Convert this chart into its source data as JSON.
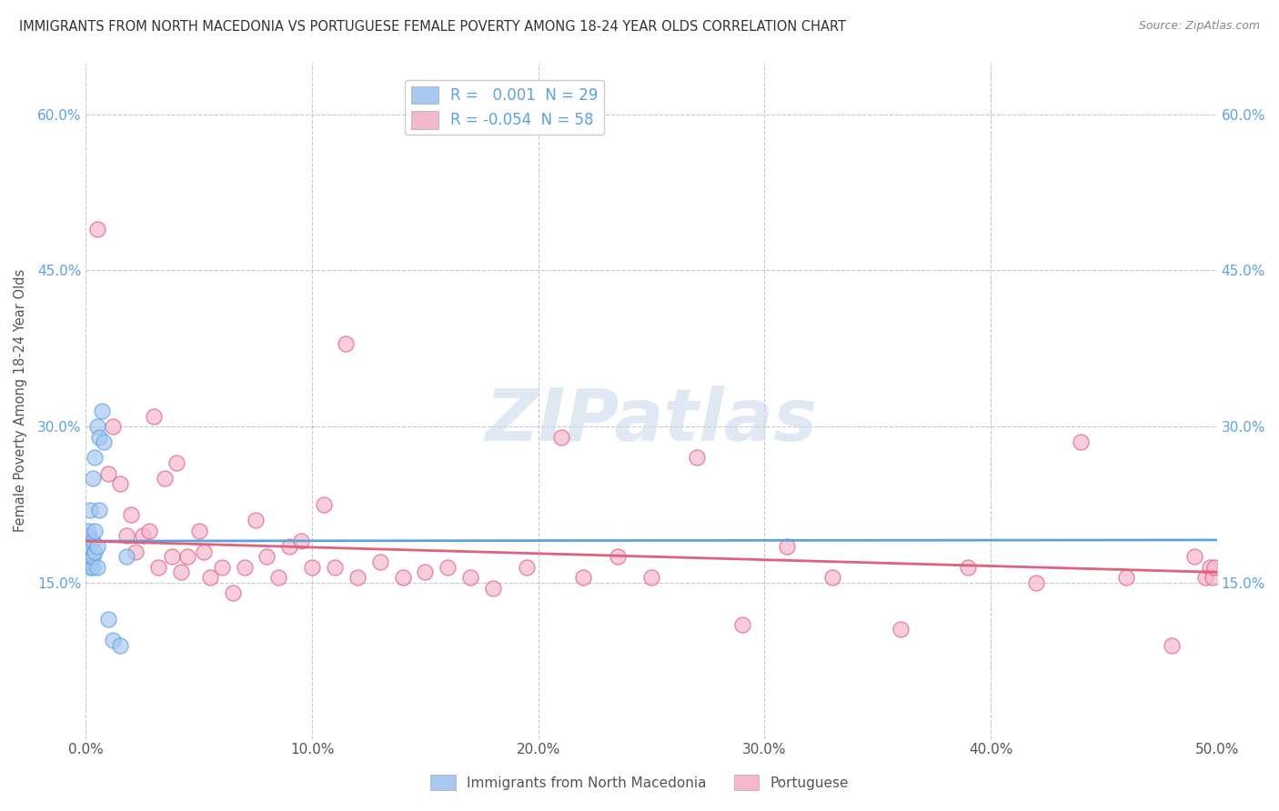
{
  "title": "IMMIGRANTS FROM NORTH MACEDONIA VS PORTUGUESE FEMALE POVERTY AMONG 18-24 YEAR OLDS CORRELATION CHART",
  "source": "Source: ZipAtlas.com",
  "ylabel": "Female Poverty Among 18-24 Year Olds",
  "xlim": [
    0.0,
    0.5
  ],
  "ylim": [
    0.0,
    0.65
  ],
  "xtick_labels": [
    "0.0%",
    "10.0%",
    "20.0%",
    "30.0%",
    "40.0%",
    "50.0%"
  ],
  "xtick_vals": [
    0.0,
    0.1,
    0.2,
    0.3,
    0.4,
    0.5
  ],
  "ytick_labels": [
    "15.0%",
    "30.0%",
    "45.0%",
    "60.0%"
  ],
  "ytick_vals": [
    0.15,
    0.3,
    0.45,
    0.6
  ],
  "blue_color": "#a8c8f0",
  "blue_line_color": "#5ba3e0",
  "pink_color": "#f4b8cc",
  "pink_line_color": "#e06080",
  "blue_scatter_edge": "#5ba3e0",
  "pink_scatter_edge": "#e06080",
  "legend_blue_label": "R =   0.001  N = 29",
  "legend_pink_label": "R = -0.054  N = 58",
  "watermark_text": "ZIPatlas",
  "background_color": "#ffffff",
  "grid_color": "#c0c0d0",
  "blue_line_intercept": 0.19,
  "blue_line_slope": 0.002,
  "pink_line_intercept": 0.19,
  "pink_line_slope": -0.06,
  "blue_x": [
    0.001,
    0.001,
    0.001,
    0.001,
    0.001,
    0.001,
    0.002,
    0.002,
    0.002,
    0.002,
    0.002,
    0.003,
    0.003,
    0.003,
    0.003,
    0.004,
    0.004,
    0.004,
    0.005,
    0.005,
    0.005,
    0.006,
    0.006,
    0.007,
    0.008,
    0.01,
    0.012,
    0.015,
    0.018
  ],
  "blue_y": [
    0.17,
    0.175,
    0.18,
    0.19,
    0.195,
    0.2,
    0.165,
    0.17,
    0.175,
    0.185,
    0.22,
    0.165,
    0.175,
    0.19,
    0.25,
    0.18,
    0.2,
    0.27,
    0.165,
    0.185,
    0.3,
    0.22,
    0.29,
    0.315,
    0.285,
    0.115,
    0.095,
    0.09,
    0.175
  ],
  "pink_x": [
    0.005,
    0.01,
    0.012,
    0.015,
    0.018,
    0.02,
    0.022,
    0.025,
    0.028,
    0.03,
    0.032,
    0.035,
    0.038,
    0.04,
    0.042,
    0.045,
    0.05,
    0.052,
    0.055,
    0.06,
    0.065,
    0.07,
    0.075,
    0.08,
    0.085,
    0.09,
    0.095,
    0.1,
    0.105,
    0.11,
    0.115,
    0.12,
    0.13,
    0.14,
    0.15,
    0.16,
    0.17,
    0.18,
    0.195,
    0.21,
    0.22,
    0.235,
    0.25,
    0.27,
    0.29,
    0.31,
    0.33,
    0.36,
    0.39,
    0.42,
    0.44,
    0.46,
    0.48,
    0.49,
    0.495,
    0.497,
    0.498,
    0.499
  ],
  "pink_y": [
    0.49,
    0.255,
    0.3,
    0.245,
    0.195,
    0.215,
    0.18,
    0.195,
    0.2,
    0.31,
    0.165,
    0.25,
    0.175,
    0.265,
    0.16,
    0.175,
    0.2,
    0.18,
    0.155,
    0.165,
    0.14,
    0.165,
    0.21,
    0.175,
    0.155,
    0.185,
    0.19,
    0.165,
    0.225,
    0.165,
    0.38,
    0.155,
    0.17,
    0.155,
    0.16,
    0.165,
    0.155,
    0.145,
    0.165,
    0.29,
    0.155,
    0.175,
    0.155,
    0.27,
    0.11,
    0.185,
    0.155,
    0.105,
    0.165,
    0.15,
    0.285,
    0.155,
    0.09,
    0.175,
    0.155,
    0.165,
    0.155,
    0.165
  ]
}
